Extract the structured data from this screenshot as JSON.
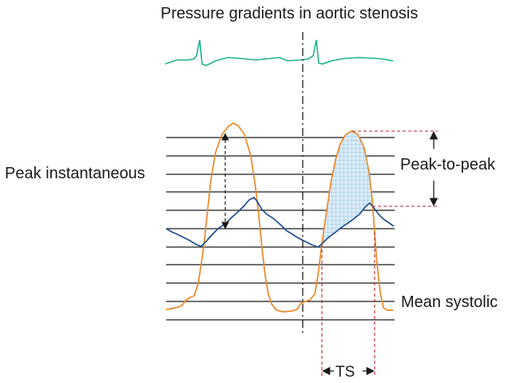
{
  "title": "Pressure gradients in aortic stenosis",
  "labels": {
    "peak_instantaneous": "Peak instantaneous",
    "peak_to_peak": "Peak-to-peak",
    "mean_systolic": "Mean systolic",
    "ts": "TS"
  },
  "colors": {
    "ecg": "#1fb28a",
    "lv_pressure": "#e8892b",
    "aortic_pressure": "#1f4e8c",
    "gridlines": "#1a1a1a",
    "dashed_guides": "#b3262a",
    "hatch": "#8fc3e8"
  }
}
